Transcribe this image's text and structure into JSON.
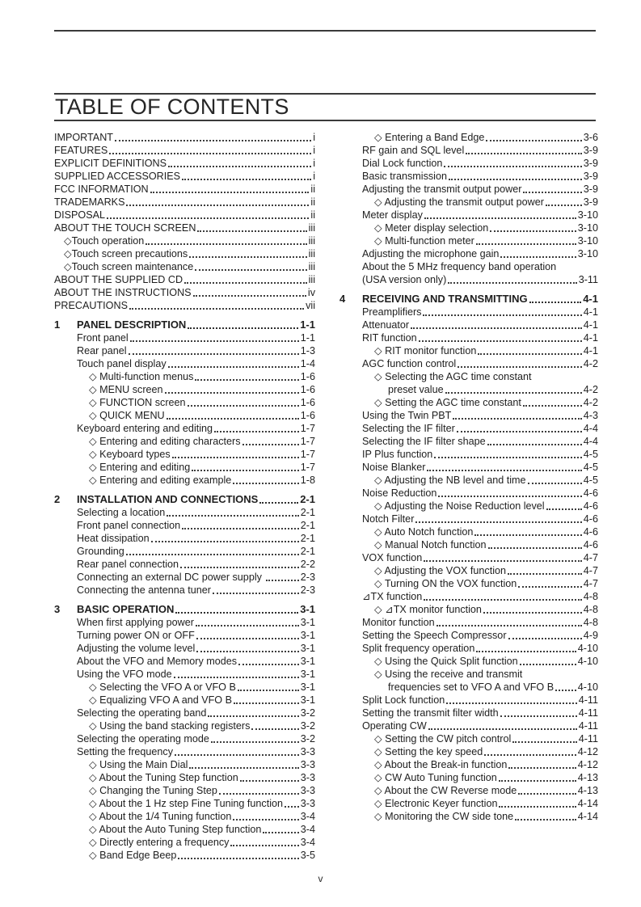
{
  "page": {
    "title": "TABLE OF CONTENTS",
    "page_number": "v"
  },
  "colors": {
    "ink": "#1e1e1e",
    "rule": "#3a3a3a",
    "leader_dots": "#3d3d3d"
  },
  "toc": {
    "left": [
      {
        "kind": "front",
        "items": [
          {
            "l": 0,
            "t": "IMPORTANT",
            "p": "i"
          },
          {
            "l": 0,
            "t": "FEATURES",
            "p": "i"
          },
          {
            "l": 0,
            "t": "EXPLICIT DEFINITIONS",
            "p": "i"
          },
          {
            "l": 0,
            "t": "SUPPLIED ACCESSORIES",
            "p": "i"
          },
          {
            "l": 0,
            "t": "FCC INFORMATION",
            "p": "ii"
          },
          {
            "l": 0,
            "t": "TRADEMARKS",
            "p": "ii"
          },
          {
            "l": 0,
            "t": "DISPOSAL",
            "p": "ii"
          },
          {
            "l": 0,
            "t": "ABOUT THE TOUCH SCREEN",
            "p": "iii"
          },
          {
            "l": 1,
            "t": "◇Touch operation",
            "p": "iii"
          },
          {
            "l": 1,
            "t": "◇Touch screen precautions",
            "p": "iii"
          },
          {
            "l": 1,
            "t": "◇Touch screen maintenance",
            "p": "iii"
          },
          {
            "l": 0,
            "t": "ABOUT THE SUPPLIED CD",
            "p": "iii"
          },
          {
            "l": 0,
            "t": "ABOUT THE INSTRUCTIONS",
            "p": "iv"
          },
          {
            "l": 0,
            "t": "PRECAUTIONS",
            "p": "vii"
          }
        ]
      },
      {
        "kind": "section",
        "num": "1",
        "title": "PANEL DESCRIPTION",
        "page": "1-1",
        "items": [
          {
            "l": 0,
            "t": "Front panel",
            "p": "1-1"
          },
          {
            "l": 0,
            "t": "Rear panel",
            "p": "1-3"
          },
          {
            "l": 0,
            "t": "Touch panel display",
            "p": "1-4"
          },
          {
            "l": 1,
            "t": "◇ Multi-function menus",
            "p": "1-6"
          },
          {
            "l": 1,
            "t": "◇ MENU screen",
            "p": "1-6"
          },
          {
            "l": 1,
            "t": "◇ FUNCTION screen",
            "p": "1-6"
          },
          {
            "l": 1,
            "t": "◇ QUICK MENU",
            "p": "1-6"
          },
          {
            "l": 0,
            "t": "Keyboard entering and editing",
            "p": "1-7"
          },
          {
            "l": 1,
            "t": "◇ Entering and editing characters",
            "p": "1-7"
          },
          {
            "l": 1,
            "t": "◇ Keyboard types",
            "p": "1-7"
          },
          {
            "l": 1,
            "t": "◇ Entering and editing",
            "p": "1-7"
          },
          {
            "l": 1,
            "t": "◇ Entering and editing example",
            "p": "1-8"
          }
        ]
      },
      {
        "kind": "section",
        "num": "2",
        "title": "INSTALLATION AND CONNECTIONS",
        "page": "2-1",
        "items": [
          {
            "l": 0,
            "t": "Selecting a location",
            "p": "2-1"
          },
          {
            "l": 0,
            "t": "Front panel connection",
            "p": "2-1"
          },
          {
            "l": 0,
            "t": "Heat dissipation",
            "p": "2-1"
          },
          {
            "l": 0,
            "t": "Grounding",
            "p": "2-1"
          },
          {
            "l": 0,
            "t": "Rear panel connection",
            "p": "2-2"
          },
          {
            "l": 0,
            "t": "Connecting an external DC power supply ",
            "p": "2-3"
          },
          {
            "l": 0,
            "t": "Connecting the antenna tuner",
            "p": "2-3"
          }
        ]
      },
      {
        "kind": "section",
        "num": "3",
        "title": "BASIC OPERATION",
        "page": "3-1",
        "items": [
          {
            "l": 0,
            "t": "When first applying power",
            "p": "3-1"
          },
          {
            "l": 0,
            "t": "Turning power ON or OFF",
            "p": "3-1"
          },
          {
            "l": 0,
            "t": "Adjusting the volume level",
            "p": "3-1"
          },
          {
            "l": 0,
            "t": "About the VFO and Memory modes",
            "p": "3-1"
          },
          {
            "l": 0,
            "t": "Using the VFO mode",
            "p": "3-1"
          },
          {
            "l": 1,
            "t": "◇ Selecting the VFO A or VFO B",
            "p": "3-1"
          },
          {
            "l": 1,
            "t": "◇ Equalizing VFO A and VFO B",
            "p": "3-1"
          },
          {
            "l": 0,
            "t": "Selecting the operating band",
            "p": "3-2"
          },
          {
            "l": 1,
            "t": "◇ Using the band stacking registers",
            "p": "3-2"
          },
          {
            "l": 0,
            "t": "Selecting the operating mode",
            "p": "3-2"
          },
          {
            "l": 0,
            "t": "Setting the frequency",
            "p": "3-3"
          },
          {
            "l": 1,
            "t": "◇ Using the Main Dial",
            "p": "3-3"
          },
          {
            "l": 1,
            "t": "◇ About the Tuning Step function",
            "p": "3-3"
          },
          {
            "l": 1,
            "t": "◇ Changing the Tuning Step",
            "p": "3-3"
          },
          {
            "l": 1,
            "t": "◇ About the 1 Hz step Fine Tuning function",
            "p": "3-3"
          },
          {
            "l": 1,
            "t": "◇ About the 1/4 Tuning function",
            "p": "3-4"
          },
          {
            "l": 1,
            "t": "◇ About the Auto Tuning Step function",
            "p": "3-4"
          },
          {
            "l": 1,
            "t": "◇ Directly entering a frequency",
            "p": "3-4"
          },
          {
            "l": 1,
            "t": "◇ Band Edge Beep",
            "p": "3-5"
          }
        ]
      }
    ],
    "right": [
      {
        "kind": "section",
        "items": [
          {
            "l": 1,
            "t": "◇ Entering a Band Edge",
            "p": "3-6"
          },
          {
            "l": 0,
            "t": "RF gain and SQL level",
            "p": "3-9"
          },
          {
            "l": 0,
            "t": "Dial Lock function",
            "p": "3-9"
          },
          {
            "l": 0,
            "t": "Basic transmission",
            "p": "3-9"
          },
          {
            "l": 0,
            "t": "Adjusting the transmit output power",
            "p": "3-9"
          },
          {
            "l": 1,
            "t": "◇ Adjusting the transmit output power",
            "p": "3-9"
          },
          {
            "l": 0,
            "t": "Meter display",
            "p": "3-10"
          },
          {
            "l": 1,
            "t": "◇ Meter display selection",
            "p": "3-10"
          },
          {
            "l": 1,
            "t": "◇ Multi-function meter",
            "p": "3-10"
          },
          {
            "l": 0,
            "t": "Adjusting the microphone gain",
            "p": "3-10"
          },
          {
            "l": 0,
            "t": "About the 5 MHz frequency band operation",
            "t2": "(USA version only)",
            "p": "3-11"
          }
        ]
      },
      {
        "kind": "section",
        "num": "4",
        "title": "RECEIVING AND TRANSMITTING",
        "page": "4-1",
        "items": [
          {
            "l": 0,
            "t": "Preamplifiers",
            "p": "4-1"
          },
          {
            "l": 0,
            "t": "Attenuator",
            "p": "4-1"
          },
          {
            "l": 0,
            "t": "RIT function",
            "p": "4-1"
          },
          {
            "l": 1,
            "t": "◇ RIT monitor function",
            "p": "4-1"
          },
          {
            "l": 0,
            "t": "AGC function control",
            "p": "4-2"
          },
          {
            "l": 1,
            "t": "◇ Selecting the AGC time constant",
            "t2": "preset value",
            "p": "4-2"
          },
          {
            "l": 1,
            "t": "◇ Setting the AGC time constant",
            "p": "4-2"
          },
          {
            "l": 0,
            "t": "Using the Twin PBT",
            "p": "4-3"
          },
          {
            "l": 0,
            "t": "Selecting the IF filter",
            "p": "4-4"
          },
          {
            "l": 0,
            "t": "Selecting the IF filter shape",
            "p": "4-4"
          },
          {
            "l": 0,
            "t": "IP Plus function",
            "p": "4-5"
          },
          {
            "l": 0,
            "t": "Noise Blanker",
            "p": "4-5"
          },
          {
            "l": 1,
            "t": "◇ Adjusting the NB level and time",
            "p": "4-5"
          },
          {
            "l": 0,
            "t": "Noise Reduction",
            "p": "4-6"
          },
          {
            "l": 1,
            "t": "◇ Adjusting the Noise Reduction level",
            "p": "4-6"
          },
          {
            "l": 0,
            "t": "Notch Filter",
            "p": "4-6"
          },
          {
            "l": 1,
            "t": "◇ Auto Notch function",
            "p": "4-6"
          },
          {
            "l": 1,
            "t": "◇ Manual Notch function",
            "p": "4-6"
          },
          {
            "l": 0,
            "t": "VOX function",
            "p": "4-7"
          },
          {
            "l": 1,
            "t": "◇ Adjusting the VOX function",
            "p": "4-7"
          },
          {
            "l": 1,
            "t": "◇ Turning ON the VOX function",
            "p": "4-7"
          },
          {
            "l": 0,
            "t": "⊿TX function",
            "p": "4-8"
          },
          {
            "l": 1,
            "t": "◇ ⊿TX monitor function",
            "p": "4-8"
          },
          {
            "l": 0,
            "t": "Monitor function",
            "p": "4-8"
          },
          {
            "l": 0,
            "t": "Setting the Speech Compressor",
            "p": "4-9"
          },
          {
            "l": 0,
            "t": "Split frequency operation",
            "p": "4-10"
          },
          {
            "l": 1,
            "t": "◇ Using the Quick Split function",
            "p": "4-10"
          },
          {
            "l": 1,
            "t": "◇ Using the receive and transmit",
            "t2": "frequencies set to VFO A and VFO B",
            "p": "4-10"
          },
          {
            "l": 0,
            "t": "Split Lock function",
            "p": "4-11"
          },
          {
            "l": 0,
            "t": "Setting the transmit filter width",
            "p": "4-11"
          },
          {
            "l": 0,
            "t": "Operating CW",
            "p": "4-11"
          },
          {
            "l": 1,
            "t": "◇ Setting the CW pitch control",
            "p": "4-11"
          },
          {
            "l": 1,
            "t": "◇ Setting the key speed",
            "p": "4-12"
          },
          {
            "l": 1,
            "t": "◇ About the Break-in function",
            "p": "4-12"
          },
          {
            "l": 1,
            "t": "◇ CW Auto Tuning function",
            "p": "4-13"
          },
          {
            "l": 1,
            "t": "◇ About the CW Reverse mode",
            "p": "4-13"
          },
          {
            "l": 1,
            "t": "◇ Electronic Keyer function",
            "p": "4-14"
          },
          {
            "l": 1,
            "t": "◇ Monitoring the CW side tone",
            "p": "4-14"
          }
        ]
      }
    ]
  }
}
